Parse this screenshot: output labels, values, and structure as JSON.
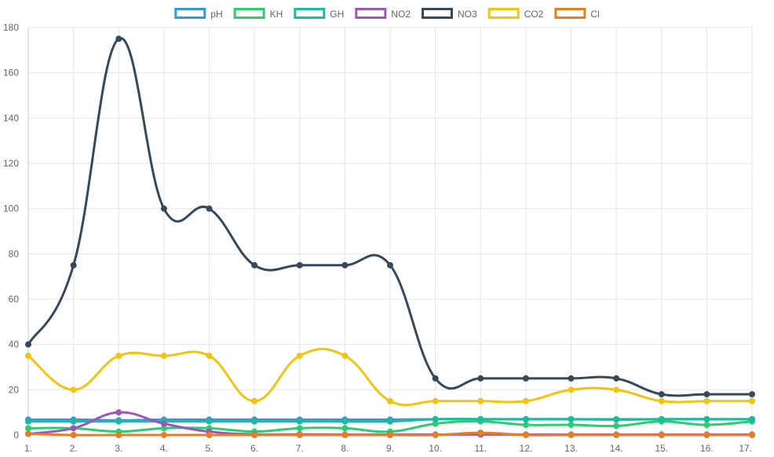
{
  "chart_data": {
    "type": "line",
    "title": "",
    "xlabel": "",
    "ylabel": "",
    "x": [
      "1.",
      "2.",
      "3.",
      "4.",
      "5.",
      "6.",
      "7.",
      "8.",
      "9.",
      "10.",
      "11.",
      "12.",
      "13.",
      "14.",
      "15.",
      "16.",
      "17."
    ],
    "ylim": [
      0,
      180
    ],
    "yticks": [
      0,
      20,
      40,
      60,
      80,
      100,
      120,
      140,
      160,
      180
    ],
    "grid": true,
    "legend_position": "top",
    "series": [
      {
        "name": "pH",
        "color": "#3498db",
        "values": [
          6.8,
          6.8,
          6.5,
          6.8,
          6.8,
          6.8,
          6.8,
          6.8,
          6.8,
          7,
          7,
          7,
          7,
          6.8,
          7,
          7,
          7
        ]
      },
      {
        "name": "KH",
        "color": "#2ecc71",
        "values": [
          3,
          3,
          1.5,
          3,
          3,
          1.5,
          3,
          3,
          1.5,
          5,
          6,
          4.5,
          4.5,
          4,
          6,
          4.5,
          6
        ]
      },
      {
        "name": "GH",
        "color": "#1abc9c",
        "values": [
          6,
          6,
          6,
          6,
          6,
          6,
          6,
          6,
          6,
          7,
          7,
          7,
          7,
          7,
          7,
          7,
          7
        ]
      },
      {
        "name": "NO2",
        "color": "#9b59b6",
        "values": [
          0.5,
          3,
          10,
          5,
          1.5,
          0.3,
          0.3,
          0.2,
          0.2,
          0.2,
          0.2,
          0.2,
          0.2,
          0.2,
          0.2,
          0.2,
          0.2
        ]
      },
      {
        "name": "NO3",
        "color": "#34495e",
        "values": [
          40,
          75,
          175,
          100,
          100,
          75,
          75,
          75,
          75,
          25,
          25,
          25,
          25,
          25,
          18,
          18,
          18
        ]
      },
      {
        "name": "CO2",
        "color": "#f1c40f",
        "values": [
          35,
          20,
          35,
          35,
          35,
          15,
          35,
          35,
          15,
          15,
          15,
          15,
          20,
          20,
          15,
          15,
          15
        ]
      },
      {
        "name": "Cl",
        "color": "#e67e22",
        "values": [
          0.5,
          0,
          0,
          0,
          0,
          0,
          0,
          0,
          0,
          0,
          1,
          0,
          0,
          0,
          0,
          0,
          0
        ]
      }
    ]
  }
}
